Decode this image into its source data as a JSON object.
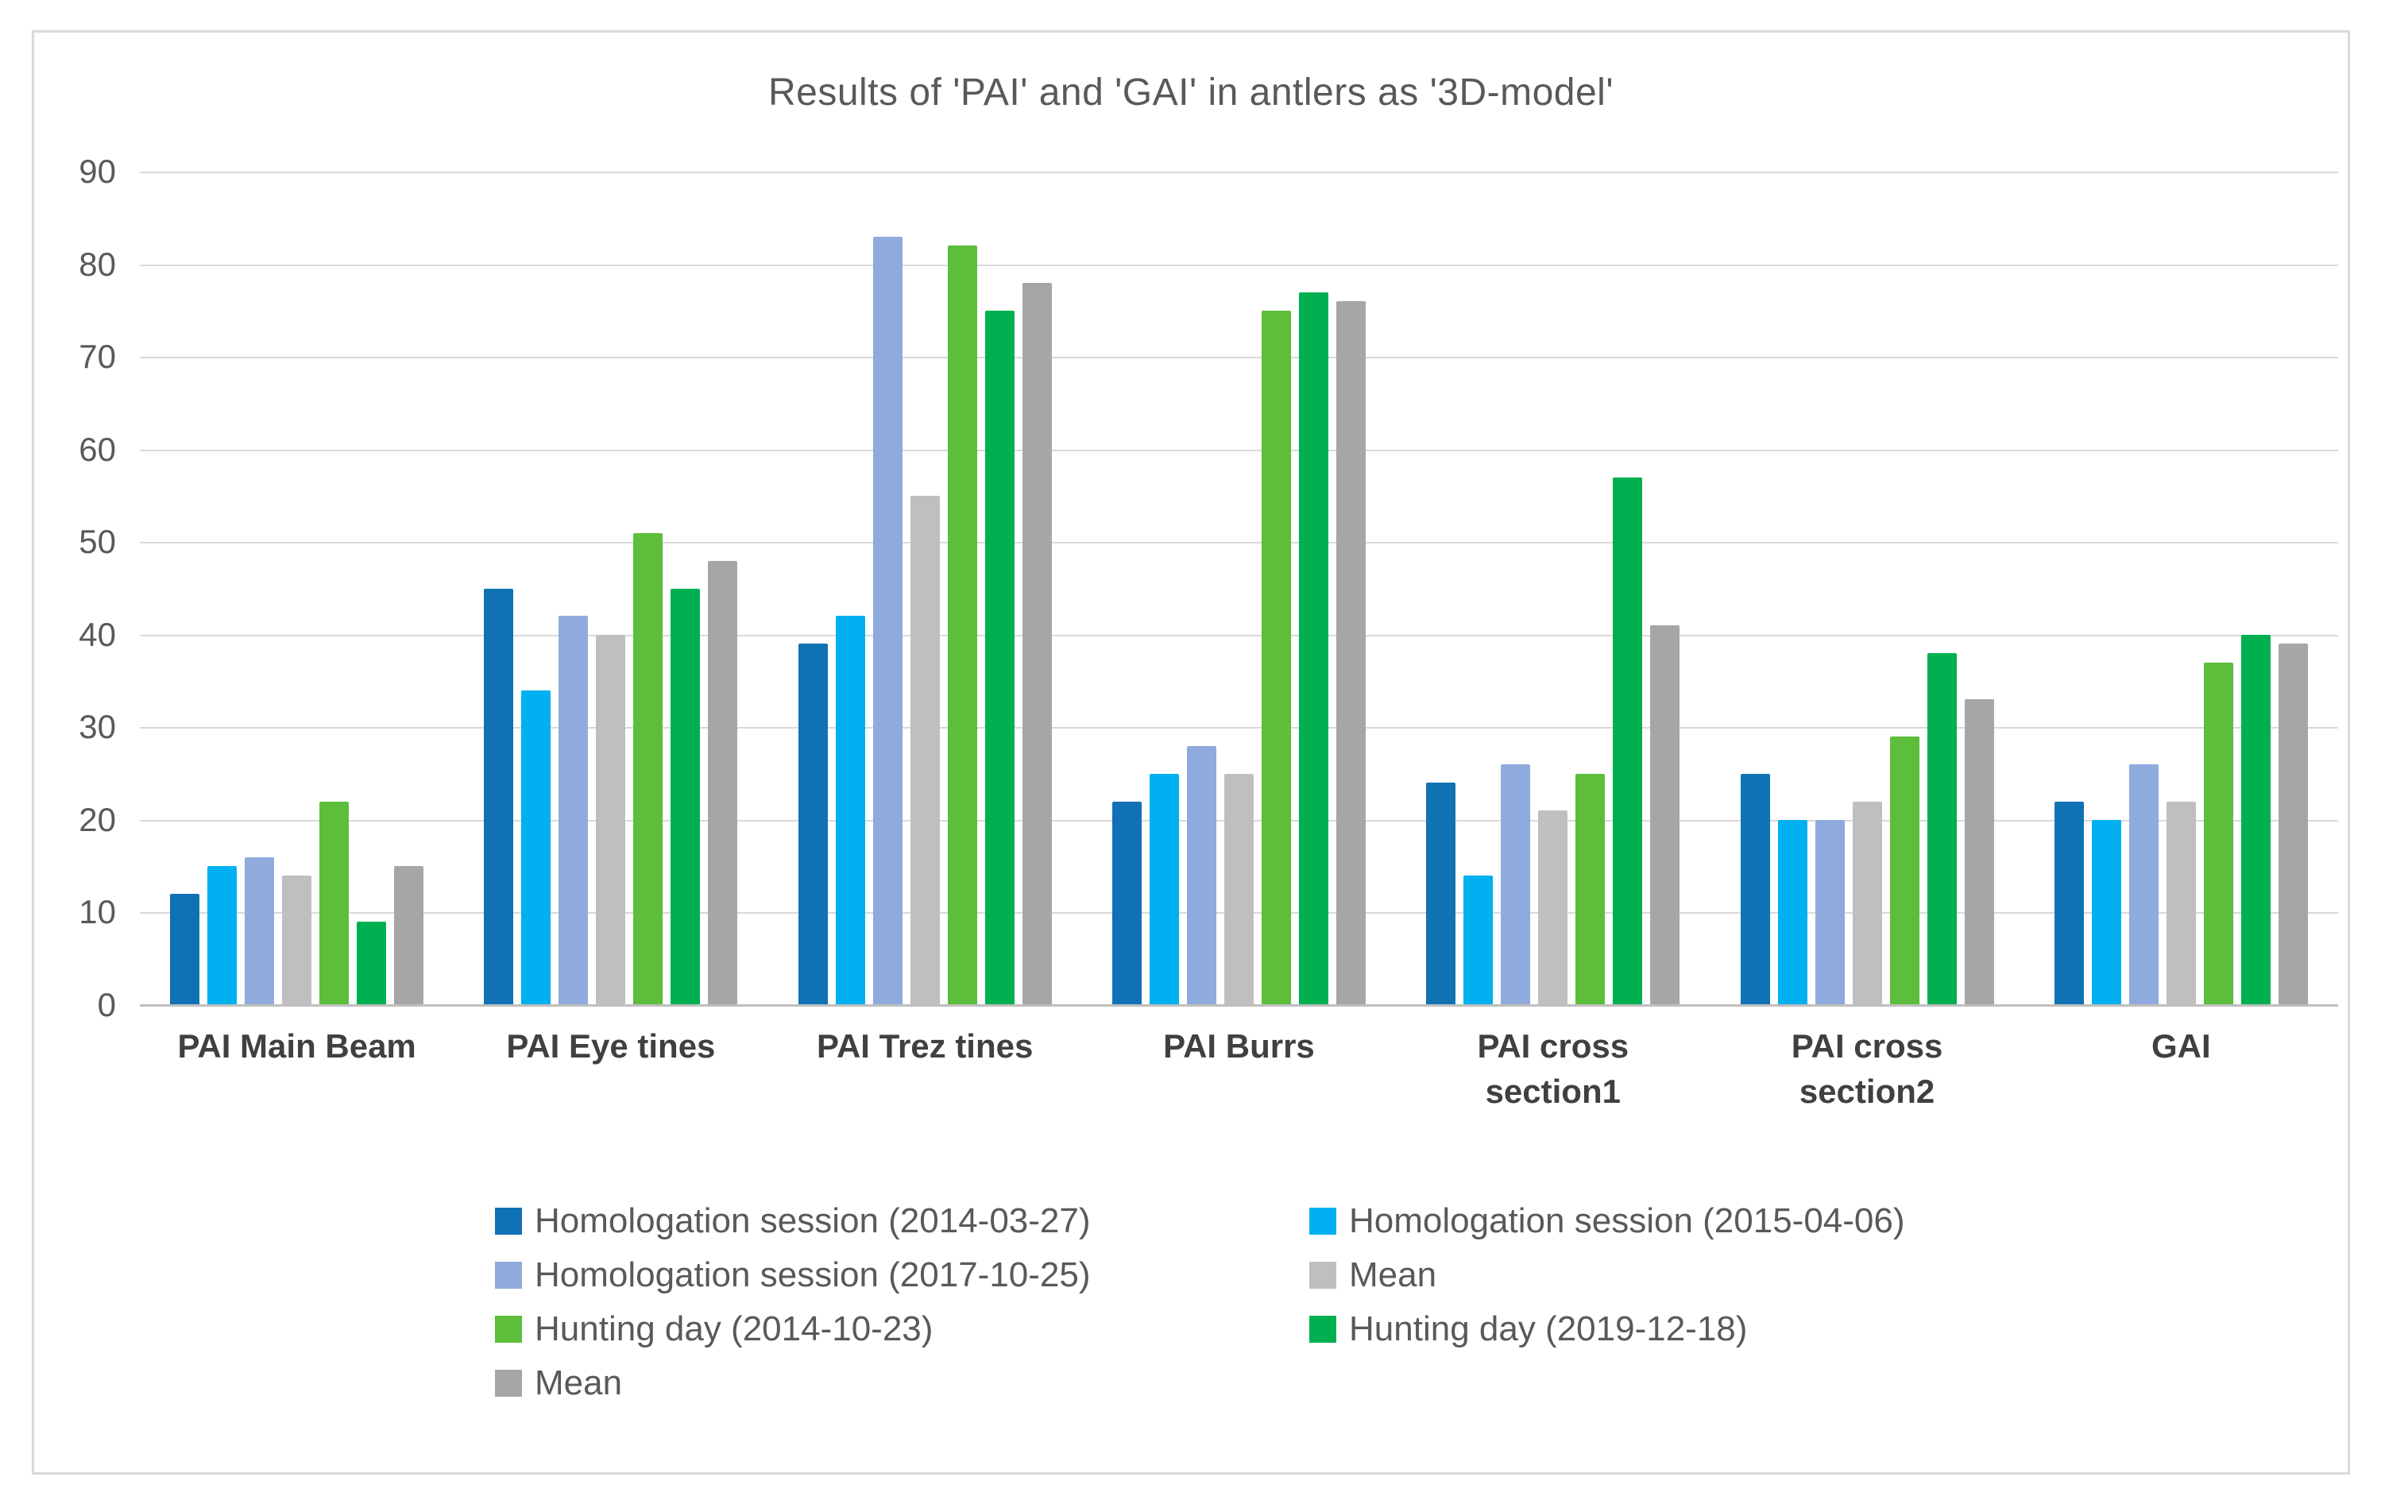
{
  "title": "Results of 'PAI' and 'GAI' in antlers as '3D-model'",
  "colors": {
    "gridline": "#d9d9d9",
    "axis_line": "#bfbfbf",
    "title_text": "#595959",
    "tick_text": "#595959",
    "category_text": "#404040",
    "legend_text": "#595959",
    "frame_border": "#d9d9d9",
    "background": "#ffffff"
  },
  "chart_data": {
    "type": "bar",
    "title": "Results of 'PAI' and 'GAI' in antlers as '3D-model'",
    "categories": [
      "PAI Main Beam",
      "PAI Eye tines",
      "PAI Trez tines",
      "PAI Burrs",
      "PAI cross section1",
      "PAI cross section2",
      "GAI"
    ],
    "series": [
      {
        "name": "Homologation session (2014-03-27)",
        "color": "#1171b5",
        "values": [
          12,
          45,
          39,
          22,
          24,
          25,
          22
        ]
      },
      {
        "name": "Homologation session (2015-04-06)",
        "color": "#00b0f0",
        "values": [
          15,
          34,
          42,
          25,
          14,
          20,
          20
        ]
      },
      {
        "name": "Homologation session (2017-10-25)",
        "color": "#8faadc",
        "values": [
          16,
          42,
          83,
          28,
          26,
          20,
          26
        ]
      },
      {
        "name": "Mean",
        "color": "#bfbfbf",
        "values": [
          14,
          40,
          55,
          25,
          21,
          22,
          22
        ]
      },
      {
        "name": "Hunting day (2014-10-23)",
        "color": "#5cbe3b",
        "values": [
          22,
          51,
          82,
          75,
          25,
          29,
          37
        ]
      },
      {
        "name": "Hunting day (2019-12-18)",
        "color": "#00b050",
        "values": [
          9,
          45,
          75,
          77,
          57,
          38,
          40
        ]
      },
      {
        "name": "Mean",
        "color": "#a6a6a6",
        "values": [
          15,
          48,
          78,
          76,
          41,
          33,
          39
        ]
      }
    ],
    "xlabel": "",
    "ylabel": "",
    "ylim": [
      0,
      90
    ],
    "ytick_step": 10,
    "ytick_labels": [
      "0",
      "10",
      "20",
      "30",
      "40",
      "50",
      "60",
      "70",
      "80",
      "90"
    ],
    "grid": "horizontal",
    "legend_position": "bottom",
    "legend_rows": [
      [
        0,
        1
      ],
      [
        2,
        3
      ],
      [
        4,
        5
      ],
      [
        6
      ]
    ]
  }
}
